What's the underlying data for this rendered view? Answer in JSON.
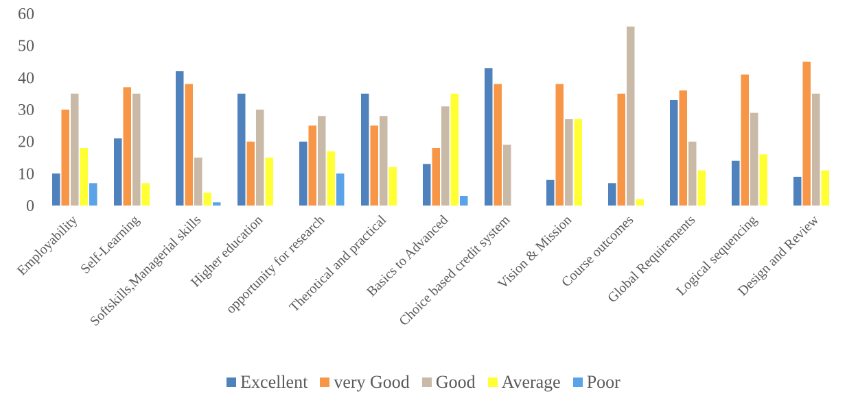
{
  "chart_data": {
    "type": "bar",
    "title": "",
    "xlabel": "",
    "ylabel": "",
    "ylim": [
      0,
      60
    ],
    "yticks": [
      "0",
      "10",
      "20",
      "30",
      "40",
      "50",
      "60"
    ],
    "grid": false,
    "legend_position": "bottom",
    "categories": [
      "Employability",
      "Self-Learning",
      "Softskills,Managerial skills",
      "Higher education",
      "opportunity for research",
      "Therotical and practical",
      "Basics to Advanced",
      "Choice based credit system",
      "Vision & Mission",
      "Course outcomes",
      "Global Requirements",
      "Logical sequencing",
      "Design and Review"
    ],
    "series": [
      {
        "name": "Excellent",
        "color": "#4F81BD",
        "values": [
          10,
          21,
          42,
          35,
          20,
          35,
          13,
          43,
          8,
          7,
          33,
          14,
          9
        ]
      },
      {
        "name": "very Good",
        "color": "#F79646",
        "values": [
          30,
          37,
          38,
          20,
          25,
          25,
          18,
          38,
          38,
          35,
          36,
          41,
          45
        ]
      },
      {
        "name": "Good",
        "color": "#C9B9A7",
        "values": [
          35,
          35,
          15,
          30,
          28,
          28,
          31,
          19,
          27,
          56,
          20,
          29,
          35
        ]
      },
      {
        "name": "Average",
        "color": "#FFFF33",
        "values": [
          18,
          7,
          4,
          15,
          17,
          12,
          35,
          0,
          27,
          2,
          11,
          16,
          11
        ]
      },
      {
        "name": "Poor",
        "color": "#5BA3E8",
        "values": [
          7,
          0,
          1,
          0,
          10,
          0,
          3,
          0,
          0,
          0,
          0,
          0,
          0
        ]
      }
    ]
  }
}
